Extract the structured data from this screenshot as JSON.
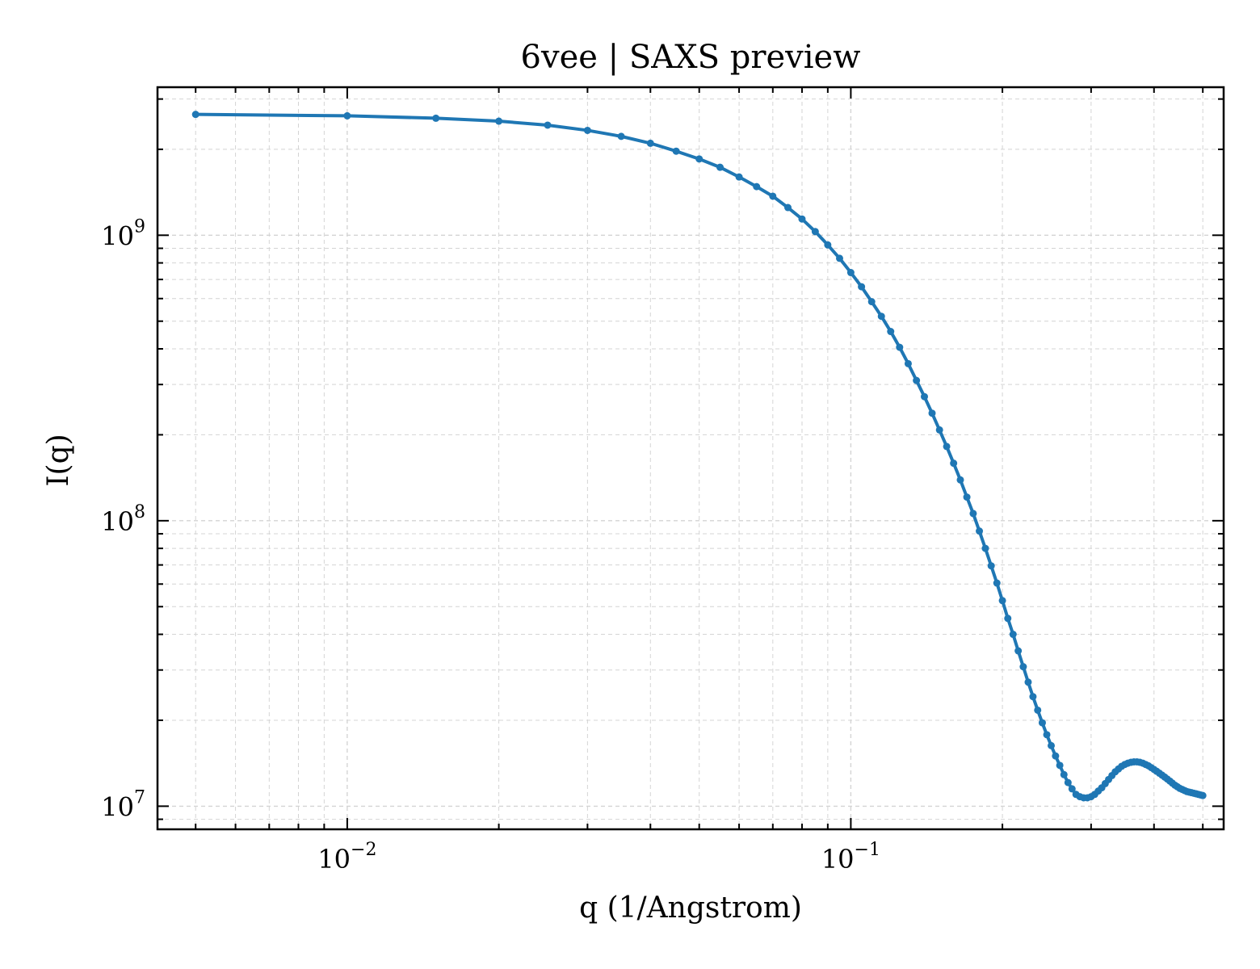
{
  "chart_data": {
    "type": "line",
    "title": "6vee | SAXS preview",
    "xlabel": "q (1/Angstrom)",
    "ylabel": "I(q)",
    "xscale": "log",
    "yscale": "log",
    "xlim": [
      0.0042,
      0.55
    ],
    "ylim": [
      8300000,
      3300000000
    ],
    "grid": true,
    "legend": "none",
    "x_ticks": [
      {
        "value": 0.01,
        "base": "10",
        "exp": "−2"
      },
      {
        "value": 0.1,
        "base": "10",
        "exp": "−1"
      }
    ],
    "y_ticks": [
      {
        "value": 10000000,
        "base": "10",
        "exp": "7"
      },
      {
        "value": 100000000,
        "base": "10",
        "exp": "8"
      },
      {
        "value": 1000000000,
        "base": "10",
        "exp": "9"
      }
    ],
    "series": [
      {
        "color": "#1f77b4",
        "marker": "circle",
        "x": [
          0.005,
          0.01,
          0.015,
          0.02,
          0.025,
          0.03,
          0.035,
          0.04,
          0.045,
          0.05,
          0.055,
          0.06,
          0.065,
          0.07,
          0.075,
          0.08,
          0.085,
          0.09,
          0.095,
          0.1,
          0.105,
          0.11,
          0.115,
          0.12,
          0.125,
          0.13,
          0.135,
          0.14,
          0.145,
          0.15,
          0.155,
          0.16,
          0.165,
          0.17,
          0.175,
          0.18,
          0.185,
          0.19,
          0.195,
          0.2,
          0.205,
          0.21,
          0.215,
          0.22,
          0.225,
          0.23,
          0.235,
          0.24,
          0.245,
          0.25,
          0.255,
          0.26,
          0.265,
          0.27,
          0.275,
          0.28,
          0.285,
          0.29,
          0.295,
          0.3,
          0.305,
          0.31,
          0.315,
          0.32,
          0.325,
          0.33,
          0.335,
          0.34,
          0.345,
          0.35,
          0.355,
          0.36,
          0.365,
          0.37,
          0.375,
          0.38,
          0.385,
          0.39,
          0.395,
          0.4,
          0.405,
          0.41,
          0.415,
          0.42,
          0.425,
          0.43,
          0.435,
          0.44,
          0.445,
          0.45,
          0.455,
          0.46,
          0.465,
          0.47,
          0.475,
          0.48,
          0.485,
          0.49,
          0.495,
          0.5
        ],
        "y": [
          2650000000,
          2620000000,
          2570000000,
          2510000000,
          2430000000,
          2330000000,
          2220000000,
          2100000000,
          1970000000,
          1850000000,
          1730000000,
          1600000000,
          1480000000,
          1370000000,
          1250000000,
          1140000000,
          1030000000,
          925000000,
          830000000,
          740000000,
          660000000,
          585000000,
          520000000,
          460000000,
          405000000,
          355000000,
          310000000,
          272000000,
          238000000,
          208000000,
          182000000,
          159000000,
          139000000,
          121000000,
          106000000,
          92000000,
          80000000,
          69500000,
          60500000,
          52500000,
          45500000,
          40000000,
          35000000,
          30800000,
          27200000,
          24200000,
          21700000,
          19600000,
          17800000,
          16300000,
          15000000,
          13900000,
          12900000,
          12100000,
          11500000,
          11000000,
          10800000,
          10700000,
          10700000,
          10800000,
          11000000,
          11300000,
          11600000,
          12000000,
          12400000,
          12800000,
          13200000,
          13500000,
          13800000,
          14000000,
          14150000,
          14250000,
          14300000,
          14300000,
          14250000,
          14150000,
          14000000,
          13850000,
          13650000,
          13450000,
          13250000,
          13050000,
          12850000,
          12650000,
          12450000,
          12250000,
          12050000,
          11850000,
          11700000,
          11550000,
          11450000,
          11350000,
          11250000,
          11200000,
          11150000,
          11100000,
          11050000,
          11000000,
          10950000,
          10900000
        ]
      }
    ]
  }
}
